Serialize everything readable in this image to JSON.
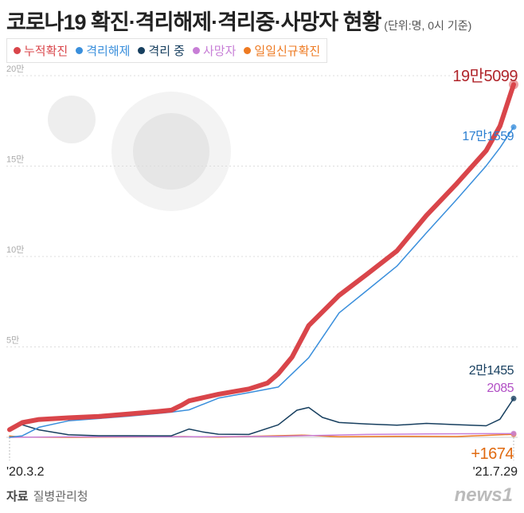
{
  "header": {
    "title": "코로나19 확진·격리해제·격리중·사망자 현황",
    "unit": "(단위:명, 0시 기준)"
  },
  "source": {
    "label": "자료",
    "name": "질병관리청"
  },
  "logo": "news1",
  "chart_data": {
    "type": "line",
    "title": "코로나19 확진·격리해제·격리중·사망자 현황",
    "ylim": [
      0,
      200000
    ],
    "yticks": [
      {
        "v": 50000,
        "label": "5만"
      },
      {
        "v": 100000,
        "label": "10만"
      },
      {
        "v": 150000,
        "label": "15만"
      },
      {
        "v": 200000,
        "label": "20만"
      }
    ],
    "xrange": [
      "2020-03-02",
      "2021-07-29"
    ],
    "xtick_labels": [
      "'20.3.2",
      "'21.7.29"
    ],
    "legend_placement": "top-left",
    "series": [
      {
        "name": "누적확진",
        "color": "#d9454a",
        "end_label": "19만5099",
        "points": [
          [
            "2020-03-02",
            4212
          ],
          [
            "2020-03-15",
            8162
          ],
          [
            "2020-04-01",
            9887
          ],
          [
            "2020-05-01",
            10774
          ],
          [
            "2020-06-01",
            11541
          ],
          [
            "2020-07-01",
            12850
          ],
          [
            "2020-08-01",
            14336
          ],
          [
            "2020-08-14",
            15039
          ],
          [
            "2020-08-25",
            17945
          ],
          [
            "2020-09-01",
            20182
          ],
          [
            "2020-10-01",
            23812
          ],
          [
            "2020-11-01",
            26732
          ],
          [
            "2020-11-20",
            30017
          ],
          [
            "2020-12-01",
            35163
          ],
          [
            "2020-12-15",
            44364
          ],
          [
            "2021-01-01",
            61769
          ],
          [
            "2021-02-01",
            78508
          ],
          [
            "2021-03-01",
            90029
          ],
          [
            "2021-04-01",
            103088
          ],
          [
            "2021-05-01",
            122633
          ],
          [
            "2021-06-01",
            140340
          ],
          [
            "2021-07-01",
            158549
          ],
          [
            "2021-07-15",
            172058
          ],
          [
            "2021-07-29",
            195099
          ]
        ]
      },
      {
        "name": "격리해제",
        "color": "#3a8fdc",
        "end_label": "17만1559",
        "points": [
          [
            "2020-03-02",
            30
          ],
          [
            "2020-03-15",
            834
          ],
          [
            "2020-04-01",
            5567
          ],
          [
            "2020-05-01",
            9123
          ],
          [
            "2020-06-01",
            10405
          ],
          [
            "2020-07-01",
            11684
          ],
          [
            "2020-08-01",
            13233
          ],
          [
            "2020-08-14",
            13901
          ],
          [
            "2020-09-01",
            15198
          ],
          [
            "2020-10-01",
            21666
          ],
          [
            "2020-11-01",
            24727
          ],
          [
            "2020-12-01",
            27791
          ],
          [
            "2021-01-01",
            43953
          ],
          [
            "2021-02-01",
            68802
          ],
          [
            "2021-03-01",
            81055
          ],
          [
            "2021-04-01",
            94674
          ],
          [
            "2021-05-01",
            113052
          ],
          [
            "2021-06-01",
            131585
          ],
          [
            "2021-07-01",
            150145
          ],
          [
            "2021-07-15",
            160087
          ],
          [
            "2021-07-29",
            171559
          ]
        ]
      },
      {
        "name": "격리 중",
        "color": "#173f5f",
        "end_label": "2만1455",
        "points": [
          [
            "2020-03-02",
            4150
          ],
          [
            "2020-03-12",
            7400
          ],
          [
            "2020-04-01",
            4155
          ],
          [
            "2020-05-01",
            1400
          ],
          [
            "2020-06-01",
            860
          ],
          [
            "2020-07-01",
            880
          ],
          [
            "2020-08-01",
            820
          ],
          [
            "2020-08-14",
            850
          ],
          [
            "2020-09-01",
            4600
          ],
          [
            "2020-09-15",
            3000
          ],
          [
            "2020-10-01",
            1700
          ],
          [
            "2020-11-01",
            1580
          ],
          [
            "2020-12-01",
            6900
          ],
          [
            "2020-12-20",
            15000
          ],
          [
            "2021-01-01",
            16500
          ],
          [
            "2021-01-15",
            11000
          ],
          [
            "2021-02-01",
            8200
          ],
          [
            "2021-03-01",
            7400
          ],
          [
            "2021-04-01",
            6700
          ],
          [
            "2021-05-01",
            7700
          ],
          [
            "2021-06-01",
            7000
          ],
          [
            "2021-07-01",
            6400
          ],
          [
            "2021-07-15",
            10000
          ],
          [
            "2021-07-29",
            21455
          ]
        ]
      },
      {
        "name": "사망자",
        "color": "#c77ed6",
        "end_label": "2085",
        "points": [
          [
            "2020-03-02",
            22
          ],
          [
            "2020-05-01",
            250
          ],
          [
            "2020-09-01",
            324
          ],
          [
            "2020-12-01",
            526
          ],
          [
            "2021-01-01",
            917
          ],
          [
            "2021-03-01",
            1603
          ],
          [
            "2021-05-01",
            1833
          ],
          [
            "2021-07-01",
            2011
          ],
          [
            "2021-07-29",
            2085
          ]
        ]
      },
      {
        "name": "일일신규확진",
        "color": "#ee7a22",
        "end_label": "+1674",
        "points": [
          [
            "2020-03-02",
            686
          ],
          [
            "2020-03-15",
            76
          ],
          [
            "2020-05-01",
            9
          ],
          [
            "2020-08-27",
            441
          ],
          [
            "2020-10-01",
            77
          ],
          [
            "2020-12-25",
            1240
          ],
          [
            "2021-02-01",
            305
          ],
          [
            "2021-04-01",
            551
          ],
          [
            "2021-06-01",
            459
          ],
          [
            "2021-07-07",
            1212
          ],
          [
            "2021-07-29",
            1674
          ]
        ]
      }
    ]
  }
}
